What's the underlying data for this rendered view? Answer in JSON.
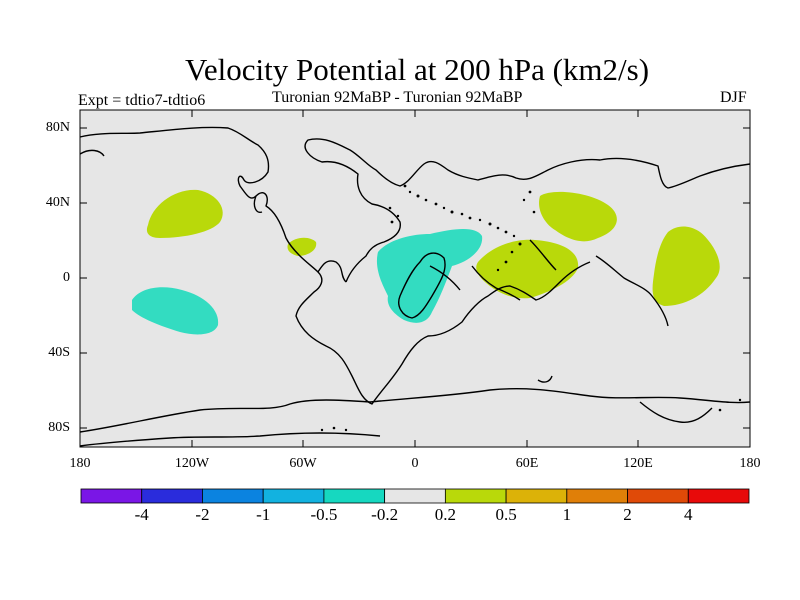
{
  "title": "Velocity Potential at 200 hPa (km2/s)",
  "left_label": "Expt = tdtio7-tdtio6",
  "center_label": "Turonian  92MaBP - Turonian  92MaBP",
  "right_label": "DJF",
  "colors": {
    "land_fill": "#e6e6e6",
    "positive": "#b9d90a",
    "negative": "#33dcc1",
    "coastline": "#000000"
  },
  "map": {
    "lat_ticks": [
      "80N",
      "40N",
      "0",
      "40S",
      "80S"
    ],
    "lon_ticks": [
      "180",
      "120W",
      "60W",
      "0",
      "60E",
      "120E",
      "180"
    ]
  },
  "colorbar": {
    "colors": [
      "#7a16e6",
      "#2a2cdc",
      "#0b83e0",
      "#12b2e0",
      "#16d8c0",
      "#e6e6e6",
      "#b9d90a",
      "#dcb208",
      "#e07f08",
      "#e04a08",
      "#e80a0a"
    ],
    "labels": [
      "-4",
      "-2",
      "-1",
      "-0.5",
      "-0.2",
      "0.2",
      "0.5",
      "1",
      "2",
      "4"
    ]
  }
}
